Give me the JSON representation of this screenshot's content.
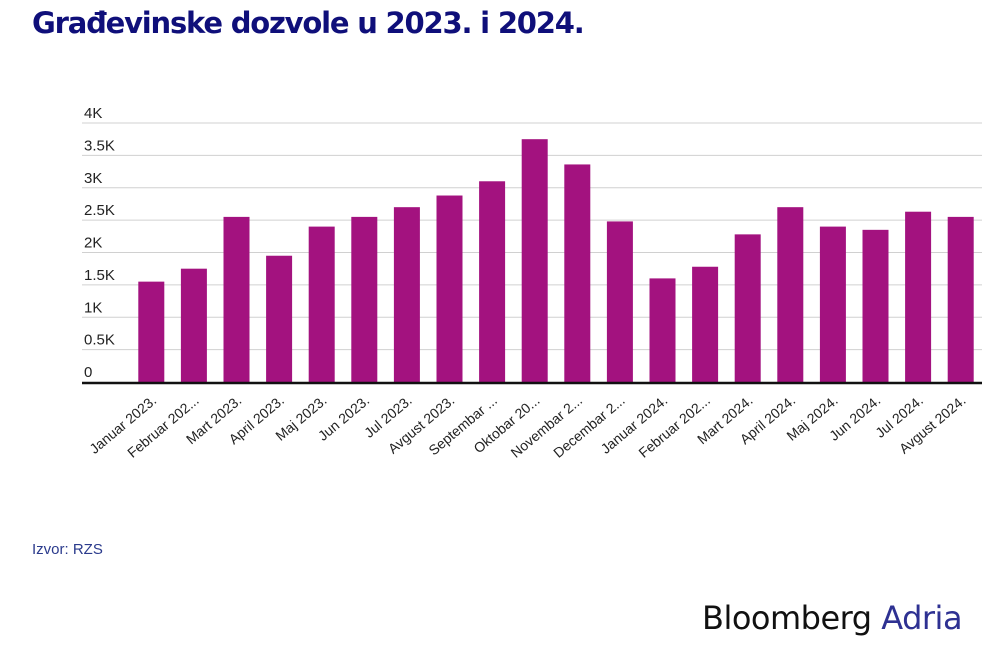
{
  "title": "Građevinske dozvole u 2023. i 2024.",
  "source": "Izvor: RZS",
  "logo": {
    "brand": "Bloomberg",
    "sub": "Adria"
  },
  "colors": {
    "bar": "#a3127f",
    "title": "#0f0f7a",
    "grid": "#d0d0d0",
    "axis": "#111111",
    "logo_accent": "#2e3192"
  },
  "chart_data": {
    "type": "bar",
    "categories": [
      "Januar 2023.",
      "Februar 202...",
      "Mart 2023.",
      "April 2023.",
      "Maj 2023.",
      "Jun 2023.",
      "Jul 2023.",
      "Avgust 2023.",
      "Septembar ...",
      "Oktobar 20...",
      "Novembar 2...",
      "Decembar 2...",
      "Januar 2024.",
      "Februar 202...",
      "Mart 2024.",
      "April 2024.",
      "Maj 2024.",
      "Jun 2024.",
      "Jul 2024.",
      "Avgust 2024."
    ],
    "values": [
      1550,
      1750,
      2550,
      1950,
      2400,
      2550,
      2700,
      2880,
      3100,
      3750,
      3360,
      2480,
      1600,
      1780,
      2280,
      2700,
      2400,
      2350,
      2630,
      2550
    ],
    "ylim": [
      0,
      4000
    ],
    "yticks": [
      0,
      500,
      1000,
      1500,
      2000,
      2500,
      3000,
      3500,
      4000
    ],
    "ytick_labels": [
      "0",
      "0.5K",
      "1K",
      "1.5K",
      "2K",
      "2.5K",
      "3K",
      "3.5K",
      "4K"
    ],
    "grid": true
  }
}
